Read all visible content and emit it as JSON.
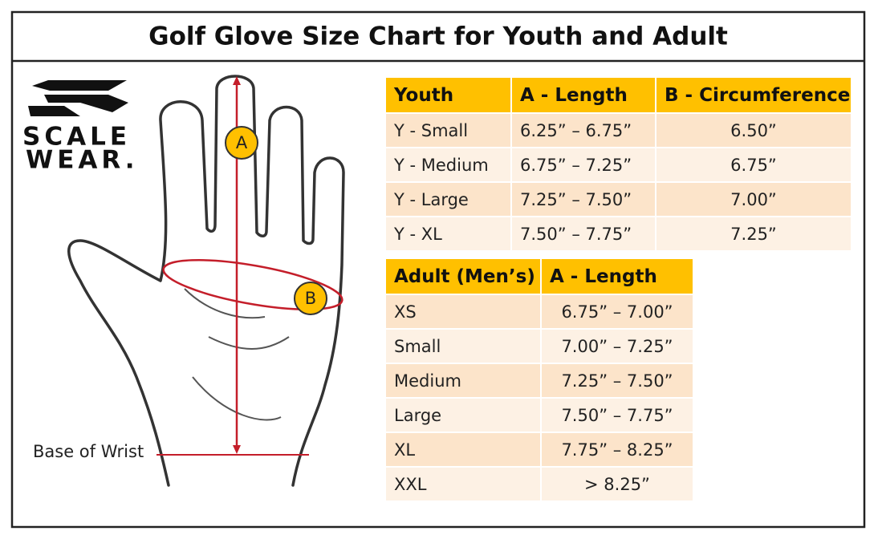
{
  "header": {
    "title": "Golf Glove Size Chart for Youth and Adult"
  },
  "logo": {
    "line1": "SCALE",
    "line2": "WEAR."
  },
  "diagram": {
    "label_a": "A",
    "label_b": "B",
    "wrist_label": "Base of Wrist"
  },
  "youth_table": {
    "columns": [
      "Youth",
      "A - Length",
      "B - Circumference"
    ],
    "rows": [
      [
        "Y - Small",
        "6.25” – 6.75”",
        "6.50”"
      ],
      [
        "Y - Medium",
        "6.75” – 7.25”",
        "6.75”"
      ],
      [
        "Y - Large",
        "7.25” – 7.50”",
        "7.00”"
      ],
      [
        "Y - XL",
        "7.50” – 7.75”",
        "7.25”"
      ]
    ]
  },
  "adult_table": {
    "columns": [
      "Adult (Men’s)",
      "A - Length"
    ],
    "rows": [
      [
        "XS",
        "6.75” – 7.00”"
      ],
      [
        "Small",
        "7.00” – 7.25”"
      ],
      [
        "Medium",
        "7.25” – 7.50”"
      ],
      [
        "Large",
        "7.50” – 7.75”"
      ],
      [
        "XL",
        "7.75” – 8.25”"
      ],
      [
        "XXL",
        "> 8.25”"
      ]
    ]
  }
}
